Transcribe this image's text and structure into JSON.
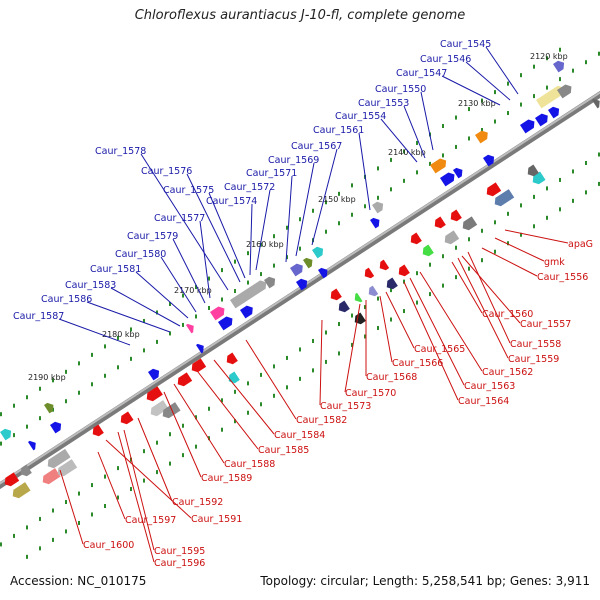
{
  "title": "Chloroflexus aurantiacus J-10-fl, complete genome",
  "footer": {
    "accession": "Accession: NC_010175",
    "stats": "Topology: circular; Length: 5,258,541 bp; Genes: 3,911"
  },
  "ticks": [
    "2120 kbp",
    "2130 kbp",
    "2140 kbp",
    "2150 kbp",
    "2160 kbp",
    "2170 kbp",
    "2180 kbp",
    "2190 kbp"
  ],
  "upper_labels": [
    "Caur_1545",
    "Caur_1546",
    "Caur_1547",
    "Caur_1550",
    "Caur_1553",
    "Caur_1554",
    "Caur_1561",
    "Caur_1567",
    "Caur_1569",
    "Caur_1571",
    "Caur_1572",
    "Caur_1574",
    "Caur_1575",
    "Caur_1576",
    "Caur_1578",
    "Caur_1577",
    "Caur_1579",
    "Caur_1580",
    "Caur_1581",
    "Caur_1583",
    "Caur_1586",
    "Caur_1587"
  ],
  "lower_labels": [
    "apaG",
    "gmk",
    "Caur_1556",
    "Caur_1557",
    "Caur_1560",
    "Caur_1558",
    "Caur_1559",
    "Caur_1562",
    "Caur_1563",
    "Caur_1564",
    "Caur_1565",
    "Caur_1566",
    "Caur_1568",
    "Caur_1570",
    "Caur_1573",
    "Caur_1582",
    "Caur_1584",
    "Caur_1585",
    "Caur_1588",
    "Caur_1589",
    "Caur_1591",
    "Caur_1592",
    "Caur_1597",
    "Caur_1595",
    "Caur_1596",
    "Caur_1600"
  ],
  "colors": {
    "forward_gene": "#1414e6",
    "reverse_gene": "#e60f0f",
    "upper_label": "#1a1aa8",
    "lower_label": "#cc1010",
    "backbone": "#9a9a9a",
    "tick": "#2a8a2a"
  }
}
